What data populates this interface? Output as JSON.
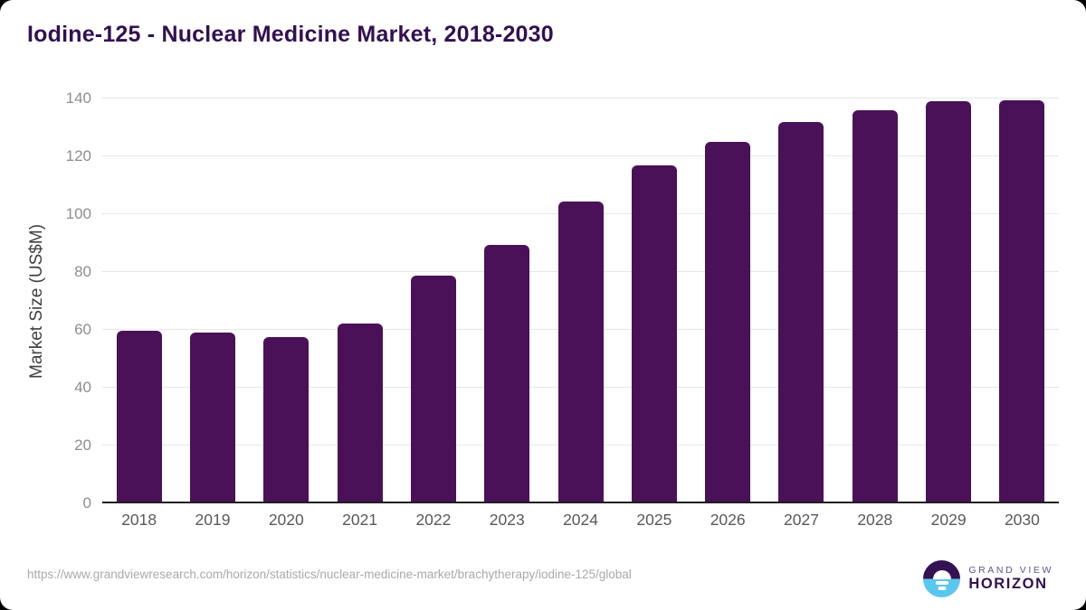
{
  "page": {
    "title": "Iodine-125 - Nuclear Medicine Market, 2018-2030",
    "source_url": "https://www.grandviewresearch.com/horizon/statistics/nuclear-medicine-market/brachytherapy/iodine-125/global",
    "logo": {
      "top_text": "GRAND VIEW",
      "bottom_text": "HORIZON"
    }
  },
  "chart_data": {
    "type": "bar",
    "title": "Iodine-125 - Nuclear Medicine Market, 2018-2030",
    "categories": [
      "2018",
      "2019",
      "2020",
      "2021",
      "2022",
      "2023",
      "2024",
      "2025",
      "2026",
      "2027",
      "2028",
      "2029",
      "2030"
    ],
    "values": [
      59.7,
      59.1,
      57.4,
      62.3,
      78.6,
      89.4,
      104.4,
      117.0,
      124.9,
      131.9,
      135.8,
      139.0,
      139.4
    ],
    "xlabel": "",
    "ylabel": "Market Size (US$M)",
    "ylim": [
      0,
      140
    ],
    "yticks": [
      0,
      20,
      40,
      60,
      80,
      100,
      120,
      140
    ],
    "grid": true,
    "legend": false,
    "bar_color": "#4a1158"
  },
  "colors": {
    "title": "#321050",
    "bar": "#4a1158",
    "gridline": "#e7e7e7",
    "zero_line": "#1f1f1f",
    "tick_label": "#8d8d8d",
    "x_label": "#57585b",
    "url_text": "#a9a9a9",
    "logo_purple": "#351253",
    "logo_blue": "#5bc6ee"
  }
}
